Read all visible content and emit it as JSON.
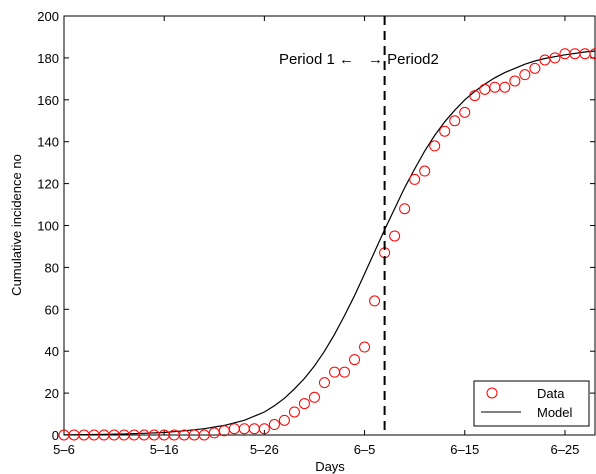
{
  "chart_data": {
    "type": "scatter",
    "xlabel": "Days",
    "ylabel": "Cumulative incidence no",
    "xlim": [
      0,
      53
    ],
    "ylim": [
      0,
      200
    ],
    "grid": false,
    "legend_position": "bottom-right",
    "x_ticks": [
      {
        "value": 0,
        "label": "5–6"
      },
      {
        "value": 10,
        "label": "5–16"
      },
      {
        "value": 20,
        "label": "5–26"
      },
      {
        "value": 30,
        "label": "6–5"
      },
      {
        "value": 40,
        "label": "6–15"
      },
      {
        "value": 50,
        "label": "6–25"
      }
    ],
    "y_ticks": [
      0,
      20,
      40,
      60,
      80,
      100,
      120,
      140,
      160,
      180,
      200
    ],
    "divider": {
      "x": 32,
      "style": "dashed"
    },
    "annotations": {
      "left": "Period 1 ←",
      "right": "→ Period2"
    },
    "series": [
      {
        "name": "Data",
        "marker": "circle",
        "color": "#ff0000",
        "x": [
          0,
          1,
          2,
          3,
          4,
          5,
          6,
          7,
          8,
          9,
          10,
          11,
          12,
          13,
          14,
          15,
          16,
          17,
          18,
          19,
          20,
          21,
          22,
          23,
          24,
          25,
          26,
          27,
          28,
          29,
          30,
          31,
          32,
          33,
          34,
          35,
          36,
          37,
          38,
          39,
          40,
          41,
          42,
          43,
          44,
          45,
          46,
          47,
          48,
          49,
          50,
          51,
          52,
          53
        ],
        "y": [
          0,
          0,
          0,
          0,
          0,
          0,
          0,
          0,
          0,
          0,
          0,
          0,
          0,
          0,
          0,
          1,
          2,
          3,
          3,
          3,
          3,
          5,
          7,
          11,
          15,
          18,
          25,
          30,
          30,
          36,
          42,
          64,
          87,
          95,
          108,
          122,
          126,
          138,
          145,
          150,
          154,
          162,
          165,
          166,
          166,
          169,
          172,
          175,
          179,
          180,
          182,
          182,
          182,
          182
        ]
      },
      {
        "name": "Model",
        "style": "line",
        "color": "#000000",
        "x": [
          0,
          2,
          4,
          6,
          8,
          10,
          12,
          14,
          16,
          18,
          20,
          21,
          22,
          23,
          24,
          25,
          26,
          27,
          28,
          29,
          30,
          31,
          32,
          33,
          34,
          35,
          36,
          37,
          38,
          39,
          40,
          41,
          42,
          43,
          44,
          45,
          46,
          47,
          48,
          50,
          52,
          53
        ],
        "y": [
          0.1,
          0.2,
          0.3,
          0.5,
          0.8,
          1.2,
          2,
          3,
          4.6,
          7,
          11,
          14,
          17.5,
          22,
          27,
          33,
          40,
          48,
          57,
          66.5,
          77,
          87.5,
          98,
          108,
          118,
          127,
          135.5,
          143,
          149.5,
          155,
          160,
          164,
          167.5,
          170.5,
          173,
          175,
          177,
          178.5,
          179.7,
          181.5,
          182.8,
          183.3
        ]
      }
    ]
  }
}
